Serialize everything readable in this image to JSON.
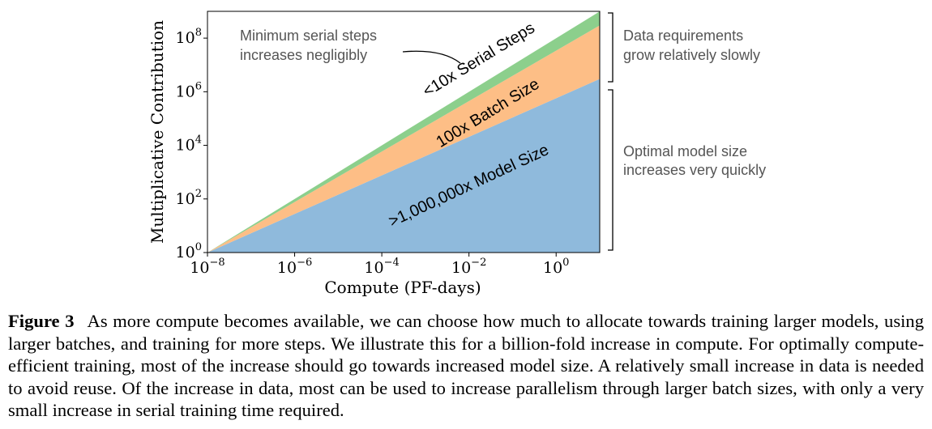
{
  "chart_data": {
    "type": "area",
    "stacked": true,
    "log_x": true,
    "log_y": true,
    "x_range": [
      1e-08,
      10
    ],
    "y_range": [
      1,
      1000000000.0
    ],
    "x": [
      1e-08,
      10
    ],
    "series": [
      {
        "name": ">1,000,000x Model Size",
        "values": [
          1,
          3000000.0
        ],
        "color": "#8fbadc"
      },
      {
        "name": "100x Batch Size",
        "values": [
          1,
          100
        ],
        "color": "#fdbe86"
      },
      {
        "name": "<10x Serial Steps",
        "values": [
          1,
          3.3
        ],
        "color": "#8ccf8c"
      }
    ],
    "xlabel": "Compute (PF-days)",
    "ylabel": "Multiplicative Contribution",
    "x_ticks": [
      {
        "value": 1e-08,
        "base": "10",
        "exp": "−8"
      },
      {
        "value": 1e-06,
        "base": "10",
        "exp": "−6"
      },
      {
        "value": 0.0001,
        "base": "10",
        "exp": "−4"
      },
      {
        "value": 0.01,
        "base": "10",
        "exp": "−2"
      },
      {
        "value": 1,
        "base": "10",
        "exp": "0"
      }
    ],
    "y_ticks": [
      {
        "value": 1,
        "base": "10",
        "exp": "0"
      },
      {
        "value": 100.0,
        "base": "10",
        "exp": "2"
      },
      {
        "value": 10000.0,
        "base": "10",
        "exp": "4"
      },
      {
        "value": 1000000.0,
        "base": "10",
        "exp": "6"
      },
      {
        "value": 100000000.0,
        "base": "10",
        "exp": "8"
      }
    ],
    "annotations": {
      "serial_note": [
        "Minimum serial steps",
        "increases negligibly"
      ],
      "data_note": [
        "Data requirements",
        "grow relatively slowly"
      ],
      "model_note": [
        "Optimal model size",
        "increases very quickly"
      ]
    },
    "grid": false
  },
  "caption": {
    "label": "Figure 3",
    "text": "As more compute becomes available, we can choose how much to allocate towards training larger models, using larger batches, and training for more steps. We illustrate this for a billion-fold increase in compute. For optimally compute-efficient training, most of the increase should go towards increased model size. A relatively small increase in data is needed to avoid reuse. Of the increase in data, most can be used to increase parallelism through larger batch sizes, with only a very small increase in serial training time required."
  }
}
